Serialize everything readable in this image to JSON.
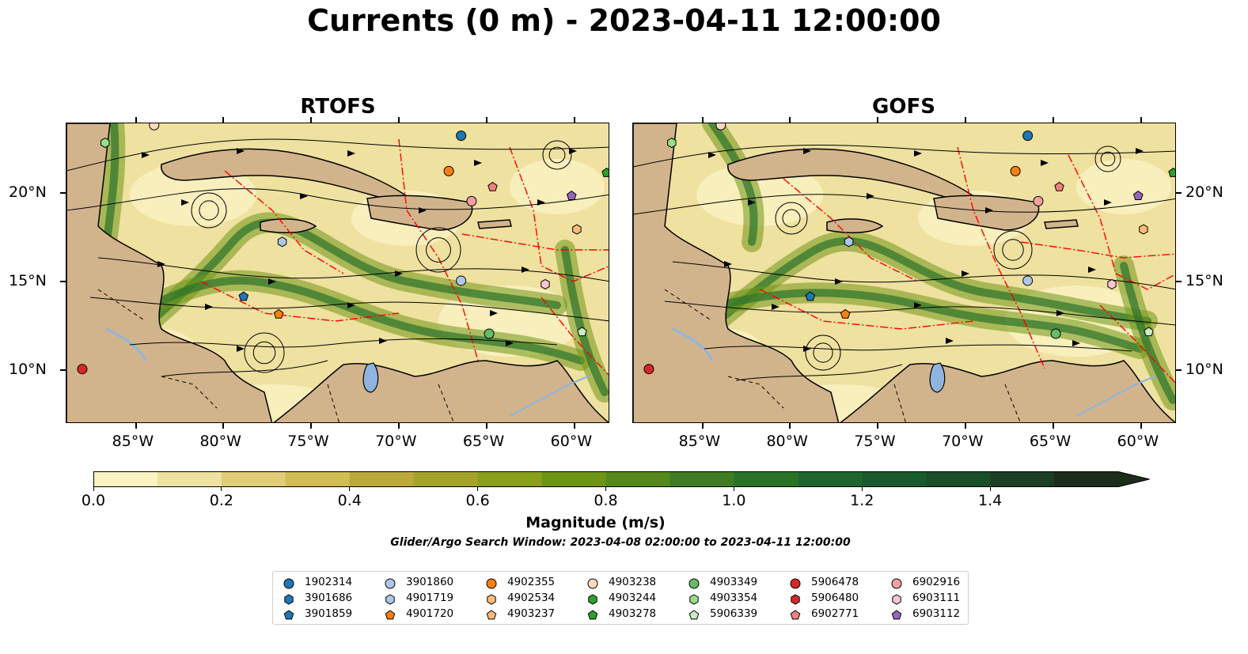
{
  "title": "Currents (0 m) - 2023-04-11 12:00:00",
  "panels": [
    {
      "title": "RTOFS"
    },
    {
      "title": "GOFS"
    }
  ],
  "map": {
    "lon_range": [
      -89,
      -58
    ],
    "lat_range": [
      7,
      24
    ],
    "lon_ticks": [
      "85°W",
      "80°W",
      "75°W",
      "70°W",
      "65°W",
      "60°W"
    ],
    "lon_tick_values": [
      -85,
      -80,
      -75,
      -70,
      -65,
      -60
    ],
    "lat_ticks": [
      "20°N",
      "15°N",
      "10°N"
    ],
    "lat_tick_values": [
      20,
      15,
      10
    ],
    "colors": {
      "land": "#d2b48c",
      "water_body": "#8fb4e0",
      "eez": "#ff0000",
      "streamline": "#000000"
    }
  },
  "colorbar": {
    "label": "Magnitude (m/s)",
    "min": 0.0,
    "max": 1.6,
    "extend": "max",
    "tick_labels": [
      "0.0",
      "0.2",
      "0.4",
      "0.6",
      "0.8",
      "1.0",
      "1.2",
      "1.4"
    ],
    "tick_values": [
      0.0,
      0.2,
      0.4,
      0.6,
      0.8,
      1.0,
      1.2,
      1.4
    ],
    "colors": [
      "#fbf3c3",
      "#efe1a0",
      "#e0cd7a",
      "#d1bc55",
      "#bba93c",
      "#a4a22b",
      "#8b9f1e",
      "#6f9518",
      "#56891c",
      "#3f7c24",
      "#2b7229",
      "#1f662e",
      "#195a2d",
      "#1a4e2a",
      "#1b3e24",
      "#1c2d1c"
    ]
  },
  "search_window": "Glider/Argo Search Window: 2023-04-08 02:00:00 to 2023-04-11 12:00:00",
  "legend": [
    {
      "id": "1902314",
      "marker": "circle",
      "color": "#1f77b4"
    },
    {
      "id": "3901686",
      "marker": "hexagon",
      "color": "#1f77b4"
    },
    {
      "id": "3901859",
      "marker": "pentagon",
      "color": "#1f77b4"
    },
    {
      "id": "3901860",
      "marker": "circle",
      "color": "#aec7e8"
    },
    {
      "id": "4901719",
      "marker": "hexagon",
      "color": "#aec7e8"
    },
    {
      "id": "4901720",
      "marker": "pentagon",
      "color": "#ff7f0e"
    },
    {
      "id": "4902355",
      "marker": "circle",
      "color": "#ff7f0e"
    },
    {
      "id": "4902534",
      "marker": "hexagon",
      "color": "#ffbb78"
    },
    {
      "id": "4903237",
      "marker": "pentagon",
      "color": "#ffbb78"
    },
    {
      "id": "4903238",
      "marker": "circle",
      "color": "#ffd9c0"
    },
    {
      "id": "4903244",
      "marker": "hexagon",
      "color": "#2ca02c"
    },
    {
      "id": "4903278",
      "marker": "pentagon",
      "color": "#2ca02c"
    },
    {
      "id": "4903349",
      "marker": "circle",
      "color": "#66bb66"
    },
    {
      "id": "4903354",
      "marker": "hexagon",
      "color": "#98df8a"
    },
    {
      "id": "5906339",
      "marker": "pentagon",
      "color": "#c7f0c0"
    },
    {
      "id": "5906478",
      "marker": "circle",
      "color": "#d62728"
    },
    {
      "id": "5906480",
      "marker": "hexagon",
      "color": "#d62728"
    },
    {
      "id": "6902771",
      "marker": "pentagon",
      "color": "#f08080"
    },
    {
      "id": "6902916",
      "marker": "circle",
      "color": "#f4a0a0"
    },
    {
      "id": "6903111",
      "marker": "hexagon",
      "color": "#f7c6d0"
    },
    {
      "id": "6903112",
      "marker": "pentagon",
      "color": "#9467bd"
    }
  ],
  "observations": [
    {
      "id": "1902314",
      "lon": -66.5,
      "lat": 23.3
    },
    {
      "id": "4903238",
      "lon": -84.0,
      "lat": 23.9
    },
    {
      "id": "4903354",
      "lon": -86.8,
      "lat": 22.9
    },
    {
      "id": "4902355",
      "lon": -67.2,
      "lat": 21.3
    },
    {
      "id": "6902916",
      "lon": -65.9,
      "lat": 19.6
    },
    {
      "id": "6902771",
      "lon": -64.7,
      "lat": 20.4
    },
    {
      "id": "6903112",
      "lon": -60.2,
      "lat": 19.9
    },
    {
      "id": "4903278",
      "lon": -58.2,
      "lat": 21.2
    },
    {
      "id": "4902534",
      "lon": -59.9,
      "lat": 18.0
    },
    {
      "id": "4901719",
      "lon": -76.7,
      "lat": 17.3
    },
    {
      "id": "3901860",
      "lon": -66.5,
      "lat": 15.1
    },
    {
      "id": "6903111",
      "lon": -61.7,
      "lat": 14.9
    },
    {
      "id": "3901859",
      "lon": -78.9,
      "lat": 14.2
    },
    {
      "id": "4901720",
      "lon": -76.9,
      "lat": 13.2
    },
    {
      "id": "4903349",
      "lon": -64.9,
      "lat": 12.1
    },
    {
      "id": "5906339",
      "lon": -59.6,
      "lat": 12.2
    },
    {
      "id": "5906478",
      "lon": -88.1,
      "lat": 10.1
    }
  ]
}
